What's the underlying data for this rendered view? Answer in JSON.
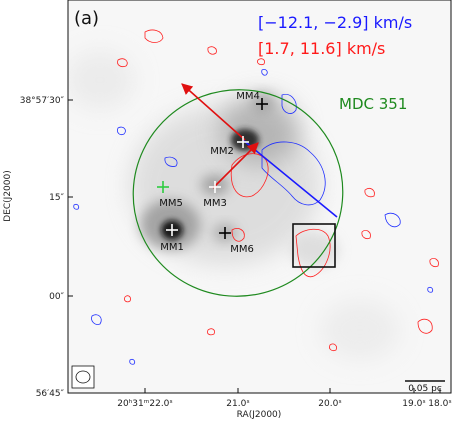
{
  "chart_data": {
    "type": "sky-map",
    "panel_label": "(a)",
    "xlabel": "RA(J2000)",
    "ylabel": "DEC(J2000)",
    "x_ticks": [
      {
        "label": "20ʰ31ᵐ22.0ˢ"
      },
      {
        "label": "21.0ˢ"
      },
      {
        "label": "20.0ˢ"
      },
      {
        "label": "19.0ˢ"
      },
      {
        "label": "18.0ˢ"
      }
    ],
    "y_ticks": [
      {
        "label": "38°57′30″"
      },
      {
        "label": "15″"
      },
      {
        "label": "00″"
      },
      {
        "label": "56′45″"
      }
    ],
    "velocity_ranges": [
      {
        "text": "[−12.1, −2.9] km/s",
        "color": "#1a1aff"
      },
      {
        "text": "[1.7, 11.6] km/s",
        "color": "#ff1a1a"
      }
    ],
    "cloud": {
      "label": "MDC 351",
      "color": "#1f8a1f"
    },
    "sources": [
      {
        "name": "MM1",
        "marker_color": "#ffffff"
      },
      {
        "name": "MM2",
        "marker_color": "#ffffff"
      },
      {
        "name": "MM3",
        "marker_color": "#ffffff"
      },
      {
        "name": "MM4",
        "marker_color": "#000000"
      },
      {
        "name": "MM5",
        "marker_color": "#2ecc40"
      },
      {
        "name": "MM6",
        "marker_color": "#000000"
      }
    ],
    "scale_bar": {
      "label": "0.05 pc"
    }
  }
}
